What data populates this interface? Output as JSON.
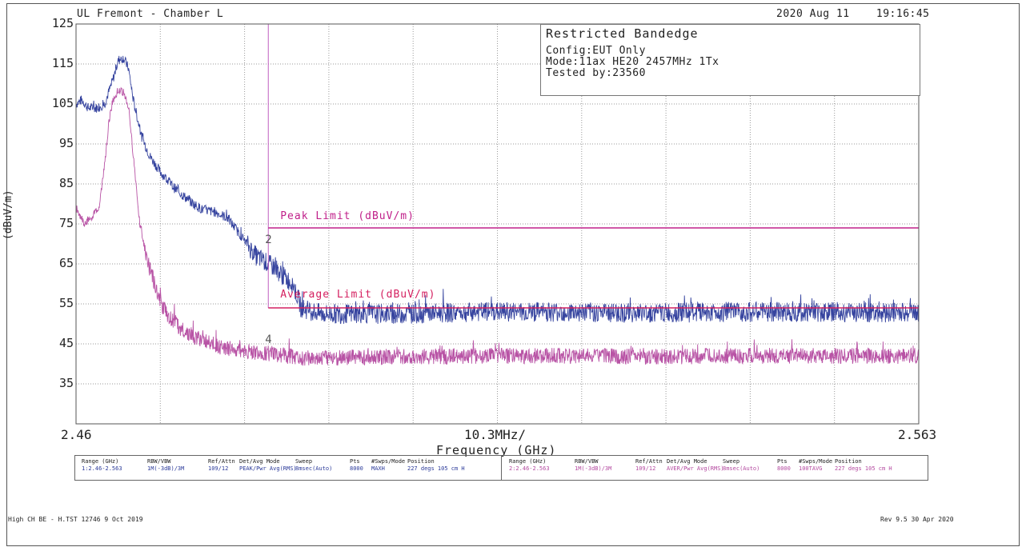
{
  "header": {
    "left": "UL Fremont - Chamber L",
    "right": "2020 Aug 11    19:16:45"
  },
  "legend": {
    "title": "Restricted Bandedge",
    "lines": [
      "Config:EUT Only",
      "Mode:11ax HE20 2457MHz 1Tx",
      "Tested by:23560"
    ]
  },
  "chart_data": {
    "type": "line",
    "title": "",
    "xlabel": "Frequency (GHz)",
    "ylabel": "(dBuV/m)",
    "xlim": [
      2.46,
      2.563
    ],
    "ylim": [
      25,
      125
    ],
    "x_tick_labels": [
      "2.46",
      "10.3MHz/",
      "2.563"
    ],
    "y_ticks": [
      125,
      115,
      105,
      95,
      85,
      75,
      65,
      55,
      45,
      35
    ],
    "grid": true,
    "series": [
      {
        "name": "Peak",
        "color": "#2b3a9a",
        "x": [
          2.46,
          2.4607,
          2.4615,
          2.4625,
          2.4635,
          2.4645,
          2.4652,
          2.4658,
          2.4664,
          2.467,
          2.468,
          2.469,
          2.4703,
          2.472,
          2.474,
          2.4755,
          2.477,
          2.4785,
          2.48,
          2.482,
          2.4835,
          2.4844,
          2.485,
          2.4865,
          2.4875,
          2.49,
          2.495,
          2.5,
          2.51,
          2.52,
          2.53,
          2.54,
          2.55,
          2.563
        ],
        "y": [
          105,
          106,
          104,
          104,
          105,
          111,
          116,
          116.5,
          114,
          106,
          97,
          92,
          88,
          84,
          80.5,
          78.5,
          78,
          76.5,
          72.5,
          67,
          65,
          64,
          62.5,
          60,
          54,
          52.5,
          52.5,
          52.5,
          53,
          53,
          52.7,
          53,
          53,
          52.8
        ],
        "noise": 2.5
      },
      {
        "name": "Average",
        "color": "#b44aa0",
        "x": [
          2.46,
          2.461,
          2.462,
          2.4628,
          2.4635,
          2.464,
          2.4645,
          2.4652,
          2.4658,
          2.4664,
          2.467,
          2.4678,
          2.4688,
          2.4698,
          2.4705,
          2.4715,
          2.473,
          2.475,
          2.478,
          2.481,
          2.484,
          2.4875,
          2.49,
          2.5,
          2.51,
          2.52,
          2.53,
          2.54,
          2.55,
          2.563
        ],
        "y": [
          79,
          75,
          77,
          79,
          90,
          100,
          106,
          108.5,
          108,
          104,
          92,
          75,
          65,
          59,
          54.5,
          51.5,
          48.5,
          46,
          44,
          43,
          42.5,
          41.5,
          41.5,
          41.8,
          42,
          42,
          41.8,
          42,
          42,
          42
        ],
        "noise": 2.0
      }
    ],
    "limits": [
      {
        "name": "Peak Limit (dBuV/m)",
        "value": 74,
        "x_start": 2.4835,
        "color": "#c0208a"
      },
      {
        "name": "Average Limit (dBuV/m)",
        "value": 54,
        "x_start": 2.4835,
        "color": "#d42060"
      }
    ],
    "band_edge_x": 2.4835,
    "markers": [
      {
        "label": "2",
        "x": 2.4835,
        "y": 71
      },
      {
        "label": "4",
        "x": 2.4835,
        "y": 46
      }
    ]
  },
  "settings": [
    {
      "color": "#2b3a9a",
      "headers": [
        "Range (GHz)",
        "RBW/VBW",
        "Ref/Attn",
        "Det/Avg Mode",
        "Sweep",
        "Pts",
        "#Swps/Mode",
        "Position"
      ],
      "values": [
        "1:2.46-2.563",
        "1M(-3dB)/3M",
        "109/12",
        "PEAK/Pwr Avg(RMS)",
        "8msec(Auto)",
        "8000",
        "MAXH",
        "227 degs 105 cm H"
      ]
    },
    {
      "color": "#b44aa0",
      "headers": [
        "Range (GHz)",
        "RBW/VBW",
        "Ref/Attn",
        "Det/Avg Mode",
        "Sweep",
        "Pts",
        "#Swps/Mode",
        "Position"
      ],
      "values": [
        "2:2.46-2.563",
        "1M(-3dB)/3M",
        "109/12",
        "AVER/Pwr Avg(RMS)",
        "8msec(Auto)",
        "8000",
        "100TAVG",
        "227 degs 105 cm H"
      ]
    }
  ],
  "footer": {
    "left": "High CH BE - H.TST 12746  9 Oct 2019",
    "right": "Rev 9.5 30 Apr 2020"
  }
}
